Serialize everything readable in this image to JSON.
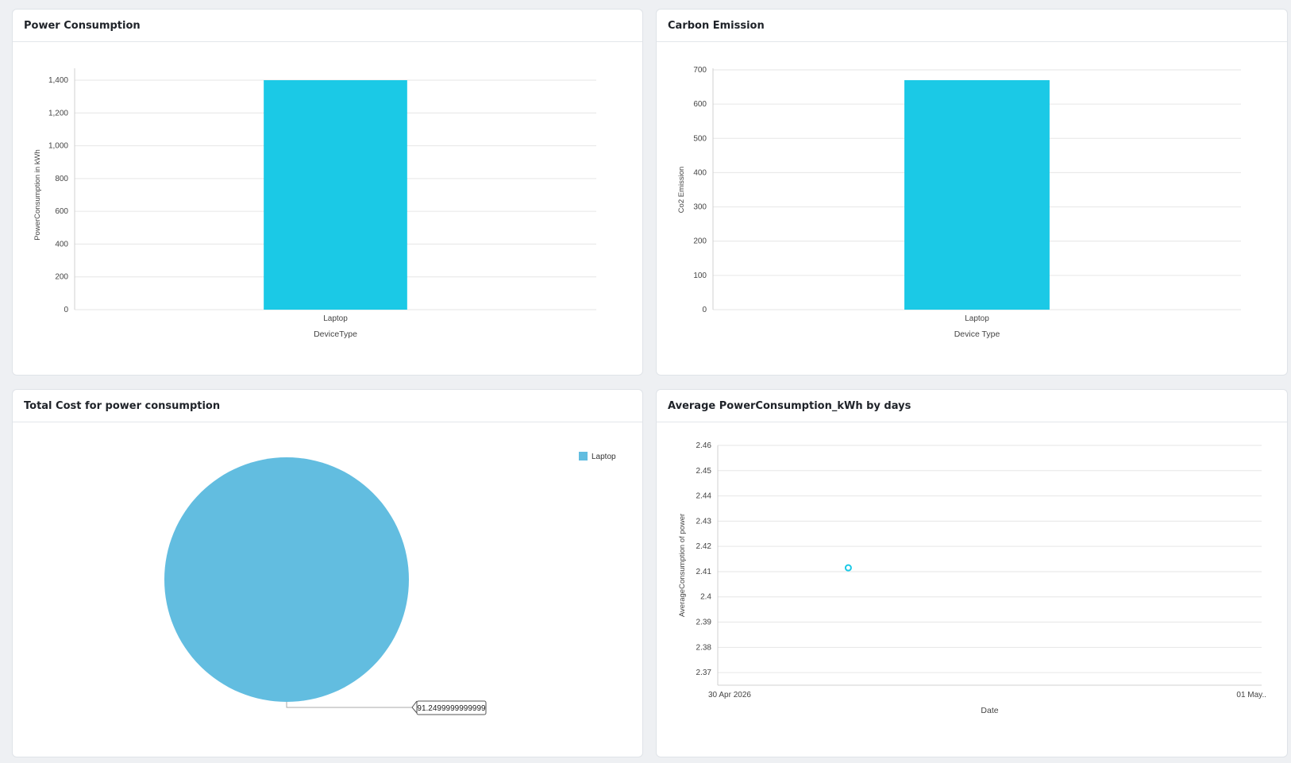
{
  "panels": {
    "power": {
      "title": "Power Consumption"
    },
    "carbon": {
      "title": "Carbon Emission"
    },
    "cost": {
      "title": "Total Cost for power consumption"
    },
    "avg": {
      "title": "Average PowerConsumption_kWh by days"
    }
  },
  "colors": {
    "bar": "#1bc9e6",
    "pie": "#62bde0",
    "point": "#1bc9e6"
  },
  "chart_data": [
    {
      "id": "power",
      "type": "bar",
      "categories": [
        "Laptop"
      ],
      "values": [
        1400
      ],
      "xlabel": "DeviceType",
      "ylabel": "PowerConsumption in kWh",
      "ylim": [
        0,
        1400
      ],
      "yticks": [
        0,
        200,
        400,
        600,
        800,
        1000,
        1200,
        1400
      ],
      "ytick_labels": [
        "0",
        "200",
        "400",
        "600",
        "800",
        "1,000",
        "1,200",
        "1,400"
      ],
      "grid": true
    },
    {
      "id": "carbon",
      "type": "bar",
      "categories": [
        "Laptop"
      ],
      "values": [
        670
      ],
      "xlabel": "Device Type",
      "ylabel": "Co2 Emission",
      "ylim": [
        0,
        700
      ],
      "yticks": [
        0,
        100,
        200,
        300,
        400,
        500,
        600,
        700
      ],
      "ytick_labels": [
        "0",
        "100",
        "200",
        "300",
        "400",
        "500",
        "600",
        "700"
      ],
      "grid": true
    },
    {
      "id": "cost",
      "type": "pie",
      "labels": [
        "Laptop"
      ],
      "values": [
        91.2499999999999
      ],
      "data_labels": [
        "91.2499999999999"
      ],
      "legend": "top-right"
    },
    {
      "id": "avg",
      "type": "scatter",
      "x_range": [
        "30 Apr 2026",
        "01 May.."
      ],
      "xlabel": "Date",
      "ylabel": "AverageConsumption of power",
      "ylim": [
        2.365,
        2.46
      ],
      "yticks": [
        2.37,
        2.38,
        2.39,
        2.4,
        2.41,
        2.42,
        2.43,
        2.44,
        2.45,
        2.46
      ],
      "ytick_labels": [
        "2.37",
        "2.38",
        "2.39",
        "2.4",
        "2.41",
        "2.42",
        "2.43",
        "2.44",
        "2.45",
        "2.46"
      ],
      "points": [
        {
          "x_fraction_of_day": 0.24,
          "y": 2.4115
        }
      ],
      "grid": true
    }
  ]
}
